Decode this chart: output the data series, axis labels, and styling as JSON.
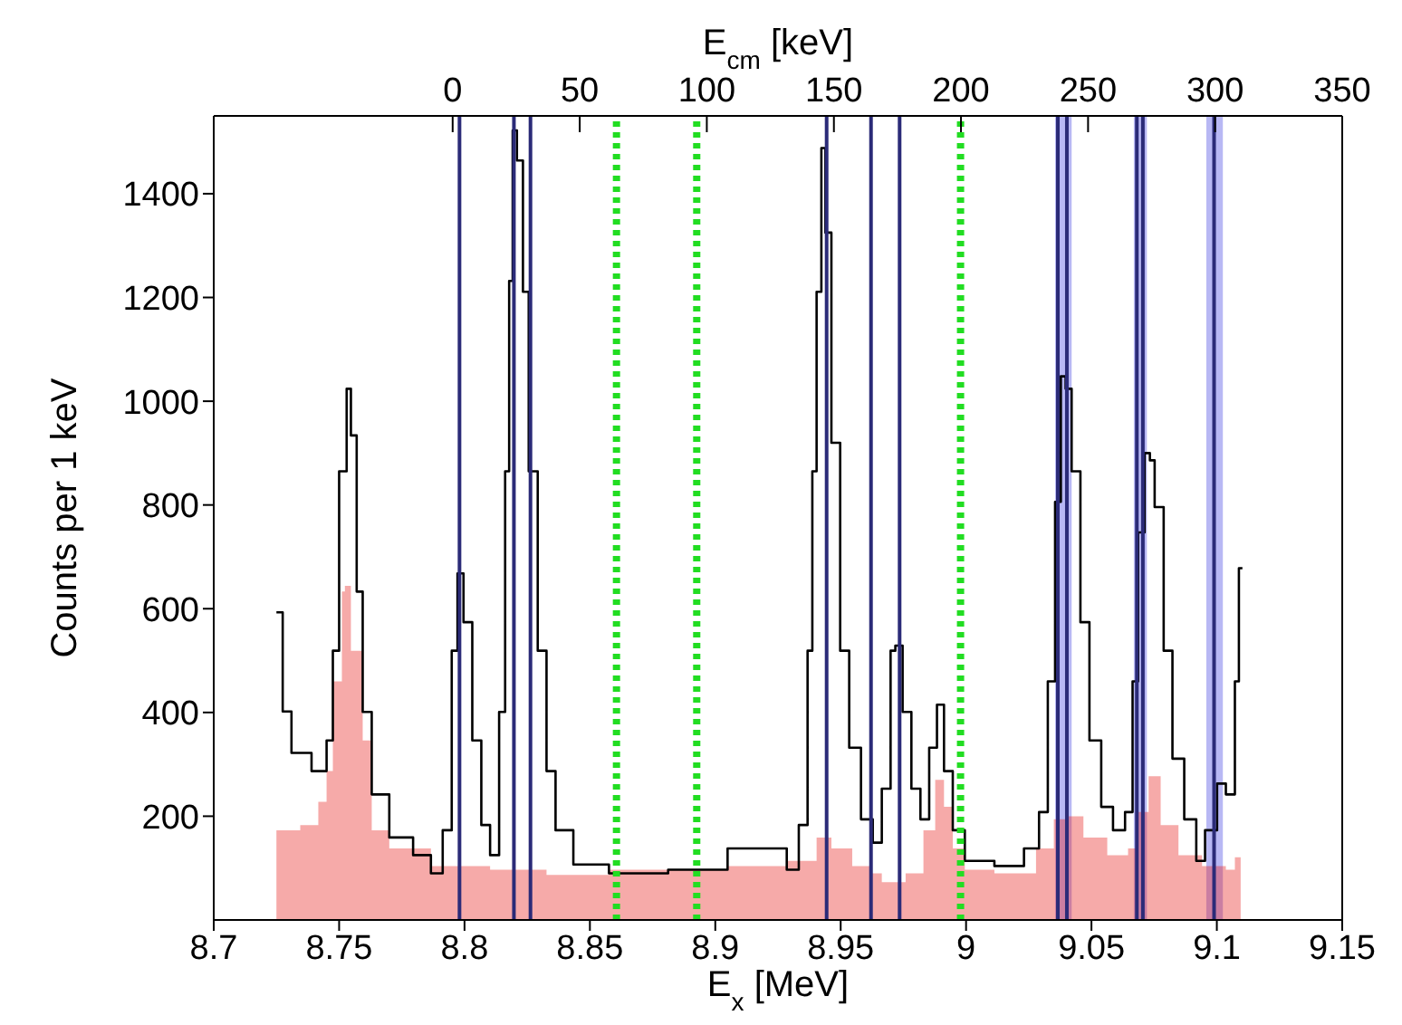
{
  "chart_data": {
    "type": "step",
    "xlabel": "E$_{x}$ [MeV]",
    "ylabel": "Counts per 1 keV",
    "x2label": "E$_{cm}$ [keV]",
    "xlim": [
      8.7,
      9.15
    ],
    "xticks": [
      8.7,
      8.75,
      8.8,
      8.85,
      8.9,
      8.95,
      9,
      9.05,
      9.1,
      9.15
    ],
    "ylim": [
      0,
      1550
    ],
    "yticks": [
      200,
      400,
      600,
      800,
      1000,
      1200,
      1400
    ],
    "x2lim": [
      -94,
      350
    ],
    "x2ticks": [
      0,
      50,
      100,
      150,
      200,
      250,
      300,
      350
    ],
    "series": [
      {
        "type": "step",
        "color": "#000000",
        "x": [
          8.725,
          8.7275,
          8.731,
          8.739,
          8.745,
          8.7475,
          8.75,
          8.753,
          8.7547,
          8.757,
          8.7594,
          8.763,
          8.77,
          8.7795,
          8.7866,
          8.7913,
          8.7949,
          8.7972,
          8.7996,
          8.8031,
          8.8067,
          8.8102,
          8.8138,
          8.8162,
          8.8178,
          8.8192,
          8.8209,
          8.8233,
          8.8256,
          8.8292,
          8.8327,
          8.8363,
          8.8434,
          8.8576,
          8.8812,
          8.9049,
          8.9285,
          8.9333,
          8.9368,
          8.9387,
          8.9404,
          8.9423,
          8.9439,
          8.9463,
          8.9498,
          8.9534,
          8.9581,
          8.9628,
          8.9664,
          8.9699,
          8.9718,
          8.9747,
          8.9782,
          8.9818,
          8.9853,
          8.9884,
          8.9912,
          8.9947,
          8.9995,
          9.0113,
          9.0231,
          9.0291,
          9.0326,
          9.0355,
          9.0378,
          9.0397,
          9.0421,
          9.0456,
          9.0492,
          9.0539,
          9.0586,
          9.0634,
          9.0664,
          9.0686,
          9.0712,
          9.0733,
          9.0752,
          9.0788,
          9.0823,
          9.087,
          9.0918,
          9.0953,
          9.1001,
          9.1036,
          9.1072,
          9.1088,
          9.1102
        ],
        "values": [
          593,
          402,
          322,
          287,
          346,
          519,
          865,
          1024,
          934,
          633,
          401,
          242,
          159,
          125,
          90,
          173,
          519,
          668,
          574,
          346,
          183,
          125,
          401,
          865,
          1232,
          1522,
          1464,
          1211,
          865,
          519,
          287,
          173,
          107,
          90,
          97,
          138,
          97,
          183,
          519,
          865,
          1211,
          1488,
          1325,
          920,
          519,
          332,
          194,
          149,
          253,
          519,
          529,
          401,
          253,
          194,
          332,
          415,
          287,
          173,
          114,
          104,
          138,
          208,
          460,
          806,
          1048,
          1024,
          865,
          574,
          346,
          218,
          173,
          208,
          460,
          747,
          900,
          886,
          796,
          519,
          311,
          194,
          114,
          173,
          263,
          242,
          460,
          678,
          678
        ]
      },
      {
        "type": "area",
        "color": "#e8201c",
        "x": [
          8.725,
          8.7345,
          8.7417,
          8.745,
          8.7475,
          8.7511,
          8.7523,
          8.7547,
          8.7594,
          8.763,
          8.77,
          8.7866,
          8.8102,
          8.8327,
          8.8576,
          8.8812,
          8.9049,
          8.9285,
          8.9404,
          8.9463,
          8.9546,
          8.9617,
          8.9664,
          8.9759,
          8.983,
          8.9877,
          8.9912,
          8.9947,
          8.9995,
          9.0113,
          9.0231,
          9.0279,
          9.035,
          9.0397,
          9.0468,
          9.0563,
          9.0646,
          9.0681,
          9.0728,
          9.0776,
          9.0847,
          9.0941,
          9.1036,
          9.1072,
          9.1095
        ],
        "values": [
          173,
          183,
          228,
          287,
          460,
          633,
          644,
          519,
          346,
          173,
          138,
          104,
          97,
          87,
          97,
          97,
          104,
          114,
          159,
          138,
          104,
          90,
          73,
          90,
          173,
          270,
          218,
          138,
          97,
          90,
          90,
          138,
          194,
          200,
          159,
          125,
          138,
          208,
          277,
          183,
          125,
          104,
          97,
          121,
          125
        ]
      }
    ],
    "bands": [
      {
        "axis": "x",
        "from": 9.0355,
        "to": 9.0421,
        "color": "#9a9af0"
      },
      {
        "axis": "x",
        "from": 9.0669,
        "to": 9.0721,
        "color": "#9a9af0"
      },
      {
        "axis": "x",
        "from": 9.0958,
        "to": 9.1024,
        "color": "#9a9af0"
      }
    ],
    "ref_lines": [
      {
        "axis": "x",
        "value": 8.798,
        "color": "#2b2b78",
        "line_style": "solid"
      },
      {
        "axis": "x",
        "value": 8.8197,
        "color": "#2b2b78",
        "line_style": "solid"
      },
      {
        "axis": "x",
        "value": 8.8263,
        "color": "#2b2b78",
        "line_style": "solid"
      },
      {
        "axis": "x",
        "value": 8.9444,
        "color": "#2b2b78",
        "line_style": "solid"
      },
      {
        "axis": "x",
        "value": 8.9621,
        "color": "#2b2b78",
        "line_style": "solid"
      },
      {
        "axis": "x",
        "value": 8.9735,
        "color": "#2b2b78",
        "line_style": "solid"
      },
      {
        "axis": "x",
        "value": 9.0366,
        "color": "#2b2b78",
        "line_style": "solid"
      },
      {
        "axis": "x",
        "value": 9.0402,
        "color": "#2b2b78",
        "line_style": "solid"
      },
      {
        "axis": "x",
        "value": 9.0681,
        "color": "#2b2b78",
        "line_style": "solid"
      },
      {
        "axis": "x",
        "value": 9.0705,
        "color": "#2b2b78",
        "line_style": "solid"
      },
      {
        "axis": "x",
        "value": 9.0989,
        "color": "#2b2b78",
        "line_style": "solid"
      },
      {
        "axis": "x",
        "value": 8.8606,
        "color": "#22dd22",
        "line_style": "dotted"
      },
      {
        "axis": "x",
        "value": 8.8926,
        "color": "#22dd22",
        "line_style": "dotted"
      },
      {
        "axis": "x",
        "value": 8.9978,
        "color": "#22dd22",
        "line_style": "dotted"
      }
    ],
    "grid": false
  }
}
